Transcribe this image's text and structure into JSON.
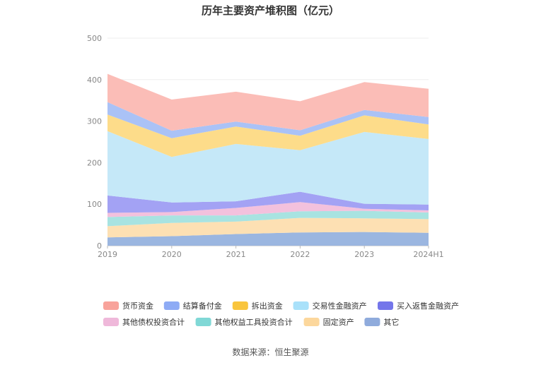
{
  "chart_data": {
    "type": "area",
    "title": "历年主要资产堆积图（亿元）",
    "source": "数据来源：恒生聚源",
    "categories": [
      "2019",
      "2020",
      "2021",
      "2022",
      "2023",
      "2024H1"
    ],
    "ylim": [
      0,
      500
    ],
    "yticks": [
      "0",
      "100",
      "200",
      "300",
      "400",
      "500"
    ],
    "grid": true,
    "legend_position": "bottom",
    "series": [
      {
        "name": "其它",
        "color": "#9bb6e0",
        "values": [
          20,
          23,
          28,
          32,
          33,
          31
        ]
      },
      {
        "name": "固定资产",
        "color": "#fde0b3",
        "values": [
          27,
          32,
          30,
          35,
          33,
          33
        ]
      },
      {
        "name": "其他权益工具投资合计",
        "color": "#a8e3e1",
        "values": [
          22,
          18,
          15,
          16,
          18,
          16
        ]
      },
      {
        "name": "其他债权投资合计",
        "color": "#f3c1dd",
        "values": [
          10,
          8,
          18,
          22,
          5,
          5
        ]
      },
      {
        "name": "买入返售金融资产",
        "color": "#a3a2f4",
        "values": [
          42,
          23,
          16,
          25,
          12,
          14
        ]
      },
      {
        "name": "交易性金融资产",
        "color": "#c5e8f8",
        "values": [
          155,
          110,
          138,
          100,
          173,
          158
        ]
      },
      {
        "name": "拆出资金",
        "color": "#fddc8a",
        "values": [
          40,
          45,
          42,
          35,
          40,
          35
        ]
      },
      {
        "name": "结算备付金",
        "color": "#aac2f6",
        "values": [
          30,
          18,
          12,
          13,
          13,
          18
        ]
      },
      {
        "name": "货币资金",
        "color": "#fbbdb7",
        "values": [
          68,
          75,
          72,
          70,
          67,
          68
        ]
      }
    ],
    "legend_colors": {
      "货币资金": "#f8a39b",
      "结算备付金": "#8eabf5",
      "拆出资金": "#f9c53d",
      "交易性金融资产": "#a9e1fa",
      "买入返售金融资产": "#7476ea",
      "其他债权投资合计": "#efb8da",
      "其他权益工具投资合计": "#80d8d6",
      "固定资产": "#fcd79c",
      "其它": "#8fabdc"
    }
  }
}
